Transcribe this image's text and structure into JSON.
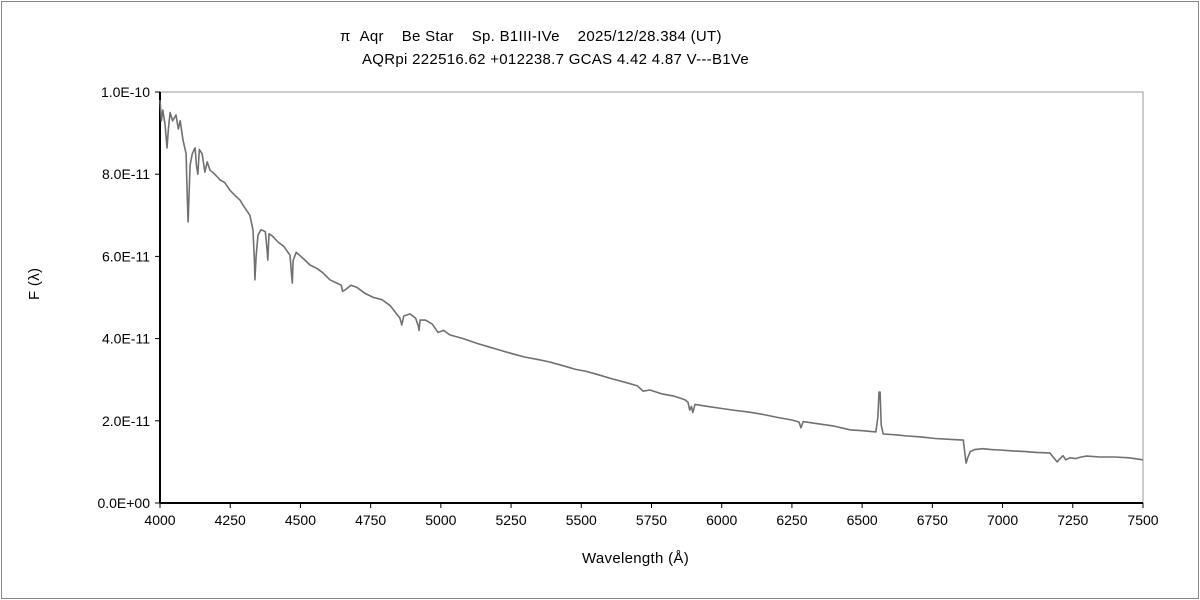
{
  "chart_data": {
    "type": "line",
    "title": "π  Aqr    Be Star    Sp. B1III-IVe    2025/12/28.384 (UT)",
    "subtitle": "AQRpi 222516.62 +012238.7 GCAS 4.42 4.87 V---B1Ve",
    "xlabel": "Wavelength (Å)",
    "ylabel": "F (λ)",
    "xlim": [
      4000,
      7500
    ],
    "ylim": [
      0,
      1e-10
    ],
    "grid": false,
    "line_color": "#707070",
    "xticks": [
      "4000",
      "4250",
      "4500",
      "4750",
      "5000",
      "5250",
      "5500",
      "5750",
      "6000",
      "6250",
      "6500",
      "6750",
      "7000",
      "7250",
      "7500"
    ],
    "yticks": [
      "0.0E+00",
      "2.0E-11",
      "4.0E-11",
      "6.0E-11",
      "8.0E-11",
      "1.0E-10"
    ],
    "series": [
      {
        "name": "pi Aqr",
        "unit": "1e-11",
        "points": [
          [
            4000,
            9.8
          ],
          [
            4005,
            9.3
          ],
          [
            4010,
            9.56
          ],
          [
            4018,
            9.2
          ],
          [
            4025,
            8.64
          ],
          [
            4030,
            9.1
          ],
          [
            4036,
            9.5
          ],
          [
            4045,
            9.3
          ],
          [
            4057,
            9.44
          ],
          [
            4065,
            9.1
          ],
          [
            4072,
            9.3
          ],
          [
            4082,
            8.83
          ],
          [
            4093,
            8.5
          ],
          [
            4097,
            7.5
          ],
          [
            4100,
            6.84
          ],
          [
            4104,
            7.6
          ],
          [
            4107,
            8.22
          ],
          [
            4115,
            8.5
          ],
          [
            4125,
            8.64
          ],
          [
            4130,
            8.2
          ],
          [
            4135,
            8.0
          ],
          [
            4140,
            8.6
          ],
          [
            4150,
            8.5
          ],
          [
            4160,
            8.05
          ],
          [
            4168,
            8.3
          ],
          [
            4178,
            8.1
          ],
          [
            4195,
            8.0
          ],
          [
            4214,
            7.86
          ],
          [
            4230,
            7.8
          ],
          [
            4250,
            7.6
          ],
          [
            4265,
            7.5
          ],
          [
            4285,
            7.37
          ],
          [
            4300,
            7.2
          ],
          [
            4320,
            7.0
          ],
          [
            4331,
            6.64
          ],
          [
            4336,
            5.9
          ],
          [
            4338,
            5.43
          ],
          [
            4342,
            6.0
          ],
          [
            4349,
            6.52
          ],
          [
            4360,
            6.65
          ],
          [
            4375,
            6.6
          ],
          [
            4382,
            6.1
          ],
          [
            4384,
            5.91
          ],
          [
            4388,
            6.55
          ],
          [
            4400,
            6.5
          ],
          [
            4420,
            6.35
          ],
          [
            4440,
            6.25
          ],
          [
            4463,
            6.03
          ],
          [
            4468,
            5.6
          ],
          [
            4471,
            5.35
          ],
          [
            4474,
            5.9
          ],
          [
            4485,
            6.1
          ],
          [
            4510,
            5.95
          ],
          [
            4534,
            5.79
          ],
          [
            4560,
            5.7
          ],
          [
            4580,
            5.6
          ],
          [
            4605,
            5.43
          ],
          [
            4630,
            5.35
          ],
          [
            4645,
            5.3
          ],
          [
            4650,
            5.15
          ],
          [
            4658,
            5.18
          ],
          [
            4680,
            5.3
          ],
          [
            4700,
            5.25
          ],
          [
            4730,
            5.1
          ],
          [
            4760,
            5.0
          ],
          [
            4790,
            4.95
          ],
          [
            4820,
            4.8
          ],
          [
            4854,
            4.5
          ],
          [
            4861,
            4.33
          ],
          [
            4868,
            4.55
          ],
          [
            4890,
            4.6
          ],
          [
            4910,
            4.5
          ],
          [
            4920,
            4.3
          ],
          [
            4922,
            4.2
          ],
          [
            4926,
            4.45
          ],
          [
            4945,
            4.45
          ],
          [
            4970,
            4.35
          ],
          [
            4990,
            4.15
          ],
          [
            5010,
            4.2
          ],
          [
            5032,
            4.09
          ],
          [
            5080,
            4.0
          ],
          [
            5130,
            3.88
          ],
          [
            5170,
            3.8
          ],
          [
            5210,
            3.72
          ],
          [
            5260,
            3.62
          ],
          [
            5300,
            3.55
          ],
          [
            5340,
            3.5
          ],
          [
            5388,
            3.43
          ],
          [
            5430,
            3.35
          ],
          [
            5480,
            3.25
          ],
          [
            5520,
            3.2
          ],
          [
            5566,
            3.11
          ],
          [
            5610,
            3.02
          ],
          [
            5650,
            2.95
          ],
          [
            5700,
            2.85
          ],
          [
            5720,
            2.72
          ],
          [
            5744,
            2.75
          ],
          [
            5790,
            2.65
          ],
          [
            5830,
            2.6
          ],
          [
            5869,
            2.51
          ],
          [
            5880,
            2.45
          ],
          [
            5886,
            2.26
          ],
          [
            5892,
            2.35
          ],
          [
            5897,
            2.2
          ],
          [
            5905,
            2.4
          ],
          [
            5950,
            2.35
          ],
          [
            6000,
            2.3
          ],
          [
            6050,
            2.25
          ],
          [
            6100,
            2.21
          ],
          [
            6150,
            2.15
          ],
          [
            6200,
            2.08
          ],
          [
            6250,
            2.02
          ],
          [
            6275,
            1.97
          ],
          [
            6282,
            1.83
          ],
          [
            6290,
            1.98
          ],
          [
            6350,
            1.92
          ],
          [
            6400,
            1.87
          ],
          [
            6456,
            1.78
          ],
          [
            6500,
            1.76
          ],
          [
            6549,
            1.73
          ],
          [
            6556,
            2.1
          ],
          [
            6560,
            2.7
          ],
          [
            6564,
            2.7
          ],
          [
            6568,
            1.9
          ],
          [
            6575,
            1.68
          ],
          [
            6620,
            1.66
          ],
          [
            6660,
            1.63
          ],
          [
            6705,
            1.61
          ],
          [
            6760,
            1.57
          ],
          [
            6810,
            1.55
          ],
          [
            6860,
            1.53
          ],
          [
            6866,
            1.2
          ],
          [
            6870,
            0.97
          ],
          [
            6876,
            1.1
          ],
          [
            6885,
            1.25
          ],
          [
            6900,
            1.3
          ],
          [
            6930,
            1.32
          ],
          [
            6960,
            1.3
          ],
          [
            6990,
            1.29
          ],
          [
            7030,
            1.27
          ],
          [
            7080,
            1.25
          ],
          [
            7120,
            1.23
          ],
          [
            7168,
            1.22
          ],
          [
            7180,
            1.12
          ],
          [
            7194,
            1.0
          ],
          [
            7205,
            1.08
          ],
          [
            7215,
            1.15
          ],
          [
            7225,
            1.05
          ],
          [
            7240,
            1.1
          ],
          [
            7260,
            1.08
          ],
          [
            7280,
            1.12
          ],
          [
            7300,
            1.14
          ],
          [
            7347,
            1.12
          ],
          [
            7400,
            1.12
          ],
          [
            7450,
            1.1
          ],
          [
            7500,
            1.05
          ]
        ]
      }
    ]
  }
}
